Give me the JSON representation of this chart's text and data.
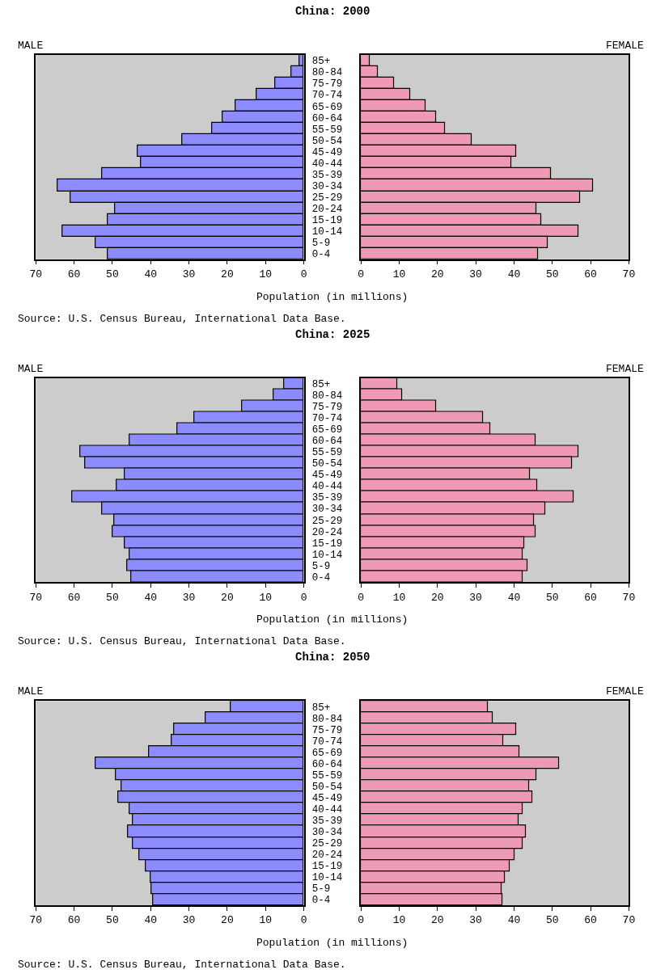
{
  "chart_data": [
    {
      "type": "bar",
      "orientation": "horizontal",
      "title": "China: 2000",
      "xlabel": "Population (in millions)",
      "annotations": [
        "Source: U.S. Census Bureau, International Data Base."
      ],
      "categories": [
        "85+",
        "80-84",
        "75-79",
        "70-74",
        "65-69",
        "60-64",
        "55-59",
        "50-54",
        "45-49",
        "40-44",
        "35-39",
        "30-34",
        "25-29",
        "20-24",
        "15-19",
        "10-14",
        "5-9",
        "0-4"
      ],
      "xlim": [
        70,
        0
      ],
      "xticks": [
        70,
        60,
        50,
        40,
        30,
        20,
        10,
        0
      ],
      "grid": false,
      "series": [
        {
          "name": "MALE",
          "color": "#8c8cff",
          "values": [
            1.2,
            3.2,
            7.4,
            12.3,
            17.8,
            21.1,
            23.9,
            31.8,
            43.4,
            42.6,
            52.6,
            64.3,
            61.0,
            49.3,
            51.3,
            63.0,
            54.3,
            51.3
          ]
        }
      ]
    },
    {
      "type": "bar",
      "orientation": "horizontal",
      "categories": [
        null,
        null,
        null,
        null,
        null,
        null,
        null,
        null,
        null,
        null,
        null,
        null,
        null,
        null,
        null,
        null,
        null,
        null
      ],
      "xlim": [
        0,
        70
      ],
      "xticks": [
        0,
        10,
        20,
        30,
        40,
        50,
        60,
        70
      ],
      "tick_labels": "x",
      "grid": false,
      "series": [
        {
          "name": "FEMALE",
          "color": "#ee9ab4",
          "values": [
            2.3,
            4.5,
            8.7,
            12.9,
            16.9,
            19.6,
            21.9,
            28.9,
            40.6,
            39.3,
            49.7,
            60.6,
            57.2,
            45.9,
            47.2,
            56.9,
            48.9,
            46.3
          ]
        }
      ]
    },
    {
      "type": "bar",
      "orientation": "horizontal",
      "title": "China: 2025",
      "xlabel": "Population (in millions)",
      "annotations": [
        "Source: U.S. Census Bureau, International Data Base."
      ],
      "categories": [
        "85+",
        "80-84",
        "75-79",
        "70-74",
        "65-69",
        "60-64",
        "55-59",
        "50-54",
        "45-49",
        "40-44",
        "35-39",
        "30-34",
        "25-29",
        "20-24",
        "15-19",
        "10-14",
        "5-9",
        "0-4"
      ],
      "xlim": [
        70,
        0
      ],
      "xticks": [
        70,
        60,
        50,
        40,
        30,
        20,
        10,
        0
      ],
      "grid": false,
      "series": [
        {
          "name": "MALE",
          "color": "#8c8cff",
          "values": [
            5.2,
            7.8,
            16.1,
            28.5,
            33.1,
            45.5,
            58.3,
            57.1,
            46.7,
            48.8,
            60.5,
            52.6,
            49.6,
            50.0,
            46.7,
            45.4,
            46.2,
            45.1
          ]
        }
      ]
    },
    {
      "type": "bar",
      "orientation": "horizontal",
      "categories": [
        null,
        null,
        null,
        null,
        null,
        null,
        null,
        null,
        null,
        null,
        null,
        null,
        null,
        null,
        null,
        null,
        null,
        null
      ],
      "xlim": [
        0,
        70
      ],
      "xticks": [
        0,
        10,
        20,
        30,
        40,
        50,
        60,
        70
      ],
      "tick_labels": "x",
      "grid": false,
      "series": [
        {
          "name": "FEMALE",
          "color": "#ee9ab4",
          "values": [
            9.6,
            10.8,
            19.6,
            32.0,
            33.9,
            45.6,
            56.9,
            55.2,
            44.2,
            46.0,
            55.6,
            48.1,
            45.2,
            45.6,
            42.7,
            42.3,
            43.6,
            42.3
          ]
        }
      ]
    },
    {
      "type": "bar",
      "orientation": "horizontal",
      "title": "China: 2050",
      "xlabel": "Population (in millions)",
      "annotations": [
        "Source: U.S. Census Bureau, International Data Base."
      ],
      "categories": [
        "85+",
        "80-84",
        "75-79",
        "70-74",
        "65-69",
        "60-64",
        "55-59",
        "50-54",
        "45-49",
        "40-44",
        "35-39",
        "30-34",
        "25-29",
        "20-24",
        "15-19",
        "10-14",
        "5-9",
        "0-4"
      ],
      "xlim": [
        70,
        0
      ],
      "xticks": [
        70,
        60,
        50,
        40,
        30,
        20,
        10,
        0
      ],
      "grid": false,
      "series": [
        {
          "name": "MALE",
          "color": "#8c8cff",
          "values": [
            19.0,
            25.6,
            33.9,
            34.4,
            40.5,
            54.3,
            49.1,
            47.6,
            48.4,
            45.5,
            44.6,
            46.0,
            44.6,
            43.0,
            41.3,
            40.1,
            39.7,
            39.3
          ]
        }
      ]
    },
    {
      "type": "bar",
      "orientation": "horizontal",
      "categories": [
        null,
        null,
        null,
        null,
        null,
        null,
        null,
        null,
        null,
        null,
        null,
        null,
        null,
        null,
        null,
        null,
        null,
        null
      ],
      "xlim": [
        0,
        70
      ],
      "xticks": [
        0,
        10,
        20,
        30,
        40,
        50,
        60,
        70
      ],
      "tick_labels": "x",
      "grid": false,
      "series": [
        {
          "name": "FEMALE",
          "color": "#ee9ab4",
          "values": [
            33.2,
            34.4,
            40.6,
            37.2,
            41.4,
            51.8,
            45.9,
            43.9,
            44.7,
            42.2,
            41.3,
            43.0,
            42.2,
            40.2,
            38.9,
            37.6,
            36.7,
            36.9
          ]
        }
      ]
    }
  ]
}
